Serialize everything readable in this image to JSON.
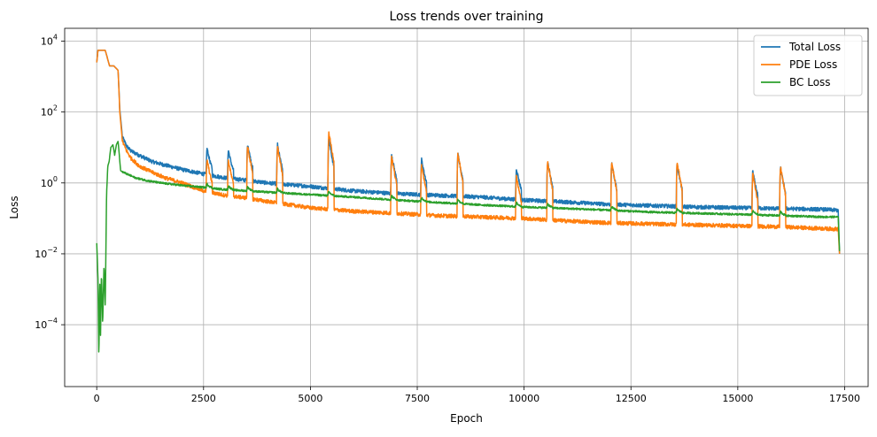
{
  "chart_data": {
    "type": "line",
    "title": "Loss trends over training",
    "xlabel": "Epoch",
    "ylabel": "Loss",
    "yscale": "log",
    "xlim": [
      -750,
      18050
    ],
    "ylim": [
      1.8e-06,
      23000
    ],
    "grid": true,
    "legend_position": "top-right",
    "x_ticks": [
      0,
      2500,
      5000,
      7500,
      10000,
      12500,
      15000,
      17500
    ],
    "x_tick_labels": [
      "0",
      "2500",
      "5000",
      "7500",
      "10000",
      "12500",
      "15000",
      "17500"
    ],
    "y_ticks": [
      0.0001,
      0.01,
      1,
      100,
      10000
    ],
    "y_tick_labels": [
      {
        "base": "10",
        "exp": "−4"
      },
      {
        "base": "10",
        "exp": "−2"
      },
      {
        "base": "10",
        "exp": "0"
      },
      {
        "base": "10",
        "exp": "2"
      },
      {
        "base": "10",
        "exp": "4"
      }
    ],
    "spike_epochs": [
      2580,
      3080,
      3530,
      4230,
      5430,
      6900,
      7600,
      8450,
      9820,
      10550,
      12050,
      13580,
      15350,
      16000
    ],
    "series": [
      {
        "name": "Total Loss",
        "color": "#1f77b4",
        "x": [
          0,
          30,
          60,
          120,
          200,
          300,
          400,
          500,
          540,
          600,
          700,
          800,
          1000,
          1300,
          1600,
          2000,
          2500,
          3000,
          3500,
          4000,
          5000,
          6000,
          7000,
          8000,
          9000,
          10000,
          11000,
          12000,
          13000,
          14000,
          15000,
          16000,
          17000,
          17350,
          17380
        ],
        "y": [
          2500,
          5500,
          5500,
          5500,
          5500,
          2000,
          2000,
          1500,
          120,
          20,
          11,
          8,
          6,
          4,
          3.2,
          2.4,
          1.8,
          1.4,
          1.2,
          1.0,
          0.8,
          0.6,
          0.5,
          0.45,
          0.4,
          0.33,
          0.29,
          0.25,
          0.23,
          0.21,
          0.2,
          0.19,
          0.18,
          0.17,
          0.01
        ]
      },
      {
        "name": "PDE Loss",
        "color": "#ff7f0e",
        "x": [
          0,
          30,
          60,
          120,
          200,
          300,
          400,
          500,
          540,
          600,
          700,
          800,
          1000,
          1300,
          1600,
          2000,
          2500,
          3000,
          3500,
          4000,
          5000,
          6000,
          7000,
          8000,
          9000,
          10000,
          11000,
          12000,
          13000,
          14000,
          15000,
          16000,
          17000,
          17350,
          17380
        ],
        "y": [
          2500,
          5500,
          5500,
          5500,
          5500,
          2000,
          2000,
          1500,
          100,
          15,
          8,
          5,
          3,
          2,
          1.4,
          1.0,
          0.6,
          0.45,
          0.38,
          0.3,
          0.2,
          0.16,
          0.14,
          0.12,
          0.11,
          0.1,
          0.085,
          0.075,
          0.07,
          0.066,
          0.062,
          0.058,
          0.052,
          0.05,
          0.01
        ]
      },
      {
        "name": "BC Loss",
        "color": "#2ca02c",
        "x": [
          0,
          30,
          50,
          70,
          90,
          110,
          140,
          170,
          200,
          230,
          260,
          290,
          330,
          380,
          420,
          460,
          500,
          560,
          700,
          900,
          1200,
          1500,
          2000,
          2500,
          3000,
          3500,
          4000,
          5000,
          6000,
          7000,
          8000,
          9000,
          10000,
          11000,
          12000,
          13000,
          14000,
          15000,
          16000,
          17000,
          17350,
          17380
        ],
        "y": [
          0.02,
          0.002,
          1e-05,
          0.002,
          5e-05,
          0.003,
          0.0001,
          0.005,
          0.0003,
          0.5,
          3,
          4,
          10,
          12,
          6,
          12,
          15,
          2.2,
          1.8,
          1.4,
          1.15,
          1.0,
          0.85,
          0.75,
          0.65,
          0.6,
          0.55,
          0.47,
          0.4,
          0.33,
          0.28,
          0.24,
          0.21,
          0.19,
          0.17,
          0.15,
          0.14,
          0.13,
          0.12,
          0.11,
          0.11,
          0.012
        ]
      }
    ]
  }
}
